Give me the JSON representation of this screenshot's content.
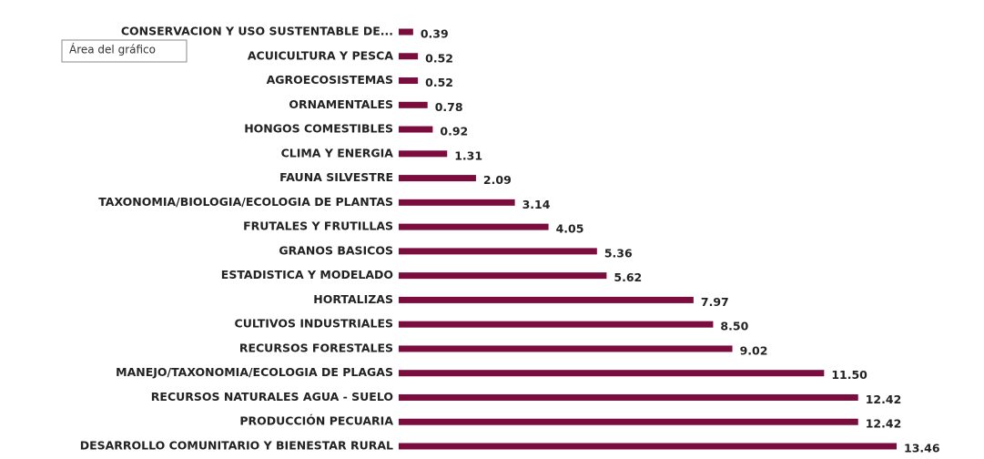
{
  "chart_data": {
    "type": "barh",
    "tooltip": "Área del gráfico",
    "color": "#7b0c3e",
    "categories": [
      "CONSERVACION Y USO SUSTENTABLE DE...",
      "ACUICULTURA Y PESCA",
      "AGROECOSISTEMAS",
      "ORNAMENTALES",
      "HONGOS COMESTIBLES",
      "CLIMA  Y ENERGIA",
      "FAUNA SILVESTRE",
      "TAXONOMIA/BIOLOGIA/ECOLOGIA DE PLANTAS",
      "FRUTALES Y FRUTILLAS",
      "GRANOS BASICOS",
      "ESTADISTICA Y MODELADO",
      "HORTALIZAS",
      "CULTIVOS INDUSTRIALES",
      "RECURSOS FORESTALES",
      "MANEJO/TAXONOMIA/ECOLOGIA DE PLAGAS",
      "RECURSOS NATURALES AGUA - SUELO",
      "PRODUCCIÓN PECUARIA",
      "DESARROLLO COMUNITARIO Y BIENESTAR RURAL"
    ],
    "values": [
      0.39,
      0.52,
      0.52,
      0.78,
      0.92,
      1.31,
      2.09,
      3.14,
      4.05,
      5.36,
      5.62,
      7.97,
      8.5,
      9.02,
      11.5,
      12.42,
      12.42,
      13.46
    ],
    "value_labels": [
      "0.39",
      "0.52",
      "0.52",
      "0.78",
      "0.92",
      "1.31",
      "2.09",
      "3.14",
      "4.05",
      "5.36",
      "5.62",
      "7.97",
      "8.50",
      "9.02",
      "11.50",
      "12.42",
      "12.42",
      "13.46"
    ]
  }
}
